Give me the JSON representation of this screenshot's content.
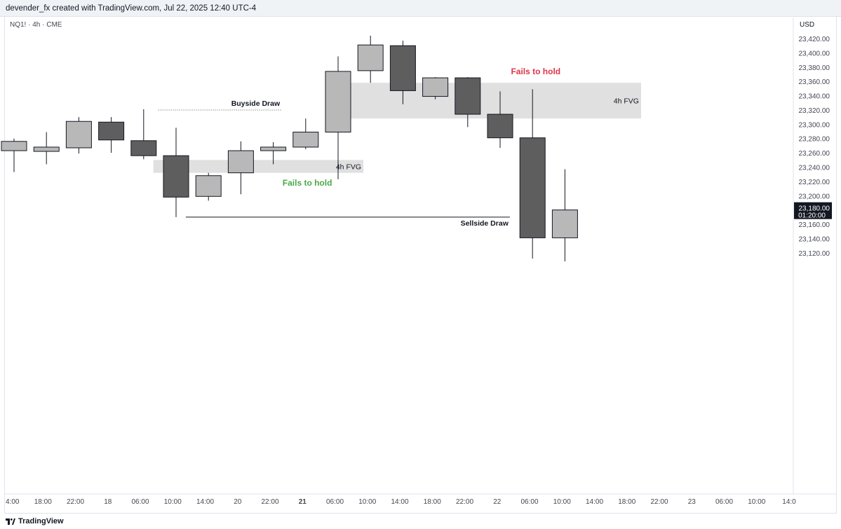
{
  "header": {
    "credit": "devender_fx created with TradingView.com, Jul 22, 2025 12:40 UTC-4"
  },
  "symbol_label": "NQ1! · 4h · CME",
  "currency": "USD",
  "footer": {
    "brand": "TradingView",
    "logo_icon": "tradingview-logo-icon"
  },
  "colors": {
    "bear": "#5e5e5e",
    "bull": "#b8b8b8",
    "fvg": "#e0e0e0",
    "red_text": "#e0344a",
    "green_text": "#4aa84a"
  },
  "chart_data": {
    "type": "candlestick",
    "ylim": [
      23110,
      23430
    ],
    "y_ticks": [
      23120,
      23140,
      23160,
      23180,
      23200,
      23220,
      23240,
      23260,
      23280,
      23300,
      23320,
      23340,
      23360,
      23380,
      23400,
      23420
    ],
    "y_tick_labels": [
      "23,120.00",
      "23,140.00",
      "23,160.00",
      "23,180.00",
      "23,200.00",
      "23,220.00",
      "23,240.00",
      "23,260.00",
      "23,280.00",
      "23,300.00",
      "23,320.00",
      "23,340.00",
      "23,360.00",
      "23,380.00",
      "23,400.00",
      "23,420.00"
    ],
    "x_tick_labels": [
      "4:00",
      "18:00",
      "22:00",
      "18",
      "06:00",
      "10:00",
      "14:00",
      "20",
      "22:00",
      "21",
      "06:00",
      "10:00",
      "14:00",
      "18:00",
      "22:00",
      "22",
      "06:00",
      "10:00",
      "14:00",
      "18:00",
      "22:00",
      "23",
      "06:00",
      "10:00",
      "14:0"
    ],
    "x_tick_bold": [
      false,
      false,
      false,
      false,
      false,
      false,
      false,
      false,
      false,
      true,
      false,
      false,
      false,
      false,
      false,
      false,
      false,
      false,
      false,
      false,
      false,
      false,
      false,
      false,
      false
    ],
    "candles": [
      {
        "o": 23263,
        "h": 23280,
        "l": 23233,
        "c": 23276
      },
      {
        "o": 23262,
        "h": 23289,
        "l": 23244,
        "c": 23268
      },
      {
        "o": 23267,
        "h": 23310,
        "l": 23259,
        "c": 23304
      },
      {
        "o": 23303,
        "h": 23310,
        "l": 23260,
        "c": 23278
      },
      {
        "o": 23277,
        "h": 23321,
        "l": 23251,
        "c": 23256
      },
      {
        "o": 23256,
        "h": 23295,
        "l": 23170,
        "c": 23198
      },
      {
        "o": 23199,
        "h": 23232,
        "l": 23193,
        "c": 23228
      },
      {
        "o": 23232,
        "h": 23276,
        "l": 23202,
        "c": 23263
      },
      {
        "o": 23263,
        "h": 23275,
        "l": 23244,
        "c": 23268
      },
      {
        "o": 23268,
        "h": 23308,
        "l": 23265,
        "c": 23289
      },
      {
        "o": 23289,
        "h": 23395,
        "l": 23223,
        "c": 23374
      },
      {
        "o": 23375,
        "h": 23424,
        "l": 23358,
        "c": 23411
      },
      {
        "o": 23410,
        "h": 23417,
        "l": 23328,
        "c": 23347
      },
      {
        "o": 23339,
        "h": 23366,
        "l": 23335,
        "c": 23365
      },
      {
        "o": 23365,
        "h": 23366,
        "l": 23296,
        "c": 23314
      },
      {
        "o": 23314,
        "h": 23346,
        "l": 23267,
        "c": 23281
      },
      {
        "o": 23281,
        "h": 23349,
        "l": 23112,
        "c": 23141
      },
      {
        "o": 23141,
        "h": 23237,
        "l": 23108,
        "c": 23180
      }
    ],
    "fvg_zones": [
      {
        "top": 23358,
        "bottom": 23308,
        "x_from": 9.88,
        "x_to": 19.35,
        "label": "4h FVG"
      },
      {
        "top": 23250,
        "bottom": 23232,
        "x_from": 4.3,
        "x_to": 10.78,
        "label": "4h FVG"
      }
    ],
    "levels": [
      {
        "price": 23320,
        "x_from": 4.45,
        "x_to": 8.25,
        "label": "Buyside Draw",
        "style": "dotted"
      },
      {
        "price": 23170,
        "x_from": 5.3,
        "x_to": 15.3,
        "label": "Sellside Draw",
        "style": "solid"
      }
    ],
    "annotations": [
      {
        "text": "Fails to hold",
        "price": 23374,
        "x": 16.1,
        "color": "red"
      },
      {
        "text": "Fails to hold",
        "price": 23218,
        "x": 9.05,
        "color": "green"
      }
    ],
    "last_price": {
      "label": "23,180.00",
      "countdown": "01:20:00",
      "price": 23180
    }
  }
}
